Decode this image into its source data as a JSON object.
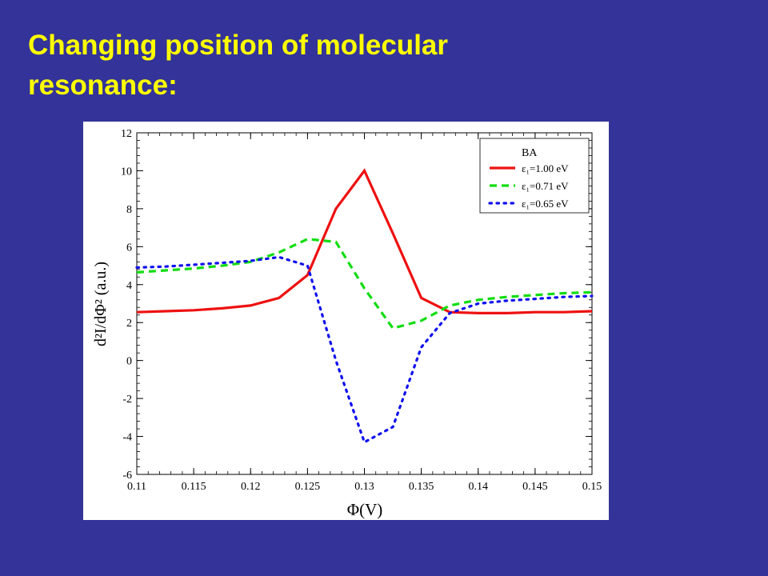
{
  "slide": {
    "title": "Changing position of molecular resonance:"
  },
  "colors": {
    "background": "#333399",
    "title": "#ffff00",
    "panel": "#ffffff"
  },
  "chart_data": {
    "type": "line",
    "title": "",
    "xlabel": "Φ(V)",
    "ylabel": "d²I/dΦ² (a.u.)",
    "xlim": [
      0.11,
      0.15
    ],
    "ylim": [
      -6,
      12
    ],
    "xticks": [
      0.11,
      0.115,
      0.12,
      0.125,
      0.13,
      0.135,
      0.14,
      0.145,
      0.15
    ],
    "yticks": [
      -6,
      -4,
      -2,
      0,
      2,
      4,
      6,
      8,
      10,
      12
    ],
    "xtick_labels": [
      "0.11",
      "0.115",
      "0.12",
      "0.125",
      "0.13",
      "0.135",
      "0.14",
      "0.145",
      "0.15"
    ],
    "ytick_labels": [
      "-6",
      "-4",
      "-2",
      "0",
      "2",
      "4",
      "6",
      "8",
      "10",
      "12"
    ],
    "grid": false,
    "legend": {
      "placement": "top-right",
      "title": "BA"
    },
    "series": [
      {
        "name": "ε₁=1.00 eV",
        "color": "#ee1111",
        "style": "solid",
        "x": [
          0.11,
          0.1125,
          0.115,
          0.1175,
          0.12,
          0.1225,
          0.125,
          0.1275,
          0.13,
          0.1325,
          0.135,
          0.1375,
          0.14,
          0.1425,
          0.145,
          0.1475,
          0.15
        ],
        "y": [
          2.55,
          2.6,
          2.65,
          2.75,
          2.9,
          3.3,
          4.5,
          8.0,
          10.0,
          6.7,
          3.3,
          2.55,
          2.5,
          2.5,
          2.55,
          2.55,
          2.6
        ]
      },
      {
        "name": "ε₁=0.71 eV",
        "color": "#11dd11",
        "style": "dashed",
        "x": [
          0.11,
          0.1125,
          0.115,
          0.1175,
          0.12,
          0.1225,
          0.125,
          0.1275,
          0.13,
          0.1325,
          0.135,
          0.1375,
          0.14,
          0.1425,
          0.145,
          0.1475,
          0.15
        ],
        "y": [
          4.65,
          4.75,
          4.85,
          5.0,
          5.2,
          5.7,
          6.4,
          6.25,
          3.8,
          1.7,
          2.1,
          2.9,
          3.2,
          3.35,
          3.45,
          3.55,
          3.6
        ]
      },
      {
        "name": "ε₁=0.65 eV",
        "color": "#1111ee",
        "style": "dotted",
        "x": [
          0.11,
          0.1125,
          0.115,
          0.1175,
          0.12,
          0.1225,
          0.125,
          0.1275,
          0.13,
          0.1325,
          0.135,
          0.1375,
          0.14,
          0.1425,
          0.145,
          0.1475,
          0.15
        ],
        "y": [
          4.9,
          4.95,
          5.05,
          5.15,
          5.25,
          5.45,
          5.0,
          0.0,
          -4.3,
          -3.5,
          0.7,
          2.5,
          3.0,
          3.15,
          3.25,
          3.35,
          3.4
        ]
      }
    ]
  }
}
